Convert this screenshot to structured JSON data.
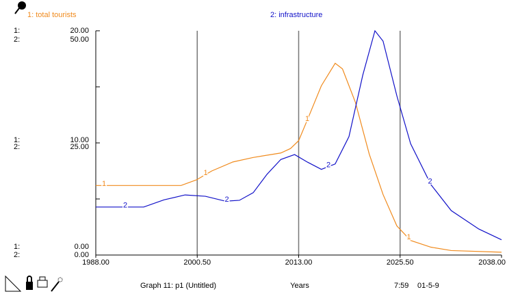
{
  "chart_data": {
    "type": "line",
    "x_label": "Years",
    "footer": {
      "graph": "Graph 11: p1 (Untitled)",
      "time": "7:59",
      "date": "01-5-9"
    },
    "y_prefix": "1:",
    "y2_prefix": "2:",
    "xlim": [
      1988,
      2038
    ],
    "xticks": [
      {
        "value": 1988,
        "label": "1988.00"
      },
      {
        "value": 2000.5,
        "label": "2000.50"
      },
      {
        "value": 2013,
        "label": "2013.00"
      },
      {
        "value": 2025.5,
        "label": "2025.50"
      },
      {
        "value": 2038,
        "label": "2038.00"
      }
    ],
    "ylim": [
      0,
      20
    ],
    "yticks": [
      {
        "value": 0,
        "label": "0.00"
      },
      {
        "value": 10,
        "label": "10.00"
      },
      {
        "value": 20,
        "label": "20.00"
      }
    ],
    "minor_yticks": [
      5,
      15
    ],
    "y2lim": [
      0,
      50
    ],
    "y2ticks": [
      {
        "value": 0,
        "label": "0.00"
      },
      {
        "value": 25,
        "label": "25.00"
      },
      {
        "value": 50,
        "label": "50.00"
      }
    ],
    "grid": true,
    "series": [
      {
        "name": "1: total tourists",
        "marker_label": "1",
        "color": "#f08a1c",
        "axis": "y",
        "x": [
          1988,
          1998.5,
          2000.4,
          2002.3,
          2004.9,
          2007.4,
          2010.8,
          2012,
          2013,
          2014.1,
          2015.8,
          2017.5,
          2018.4,
          2020,
          2021.7,
          2023.4,
          2025.1,
          2026.8,
          2029.3,
          2031.8,
          2038
        ],
        "values": [
          6.2,
          6.2,
          6.7,
          7.5,
          8.3,
          8.7,
          9.1,
          9.5,
          10.2,
          12.1,
          15.1,
          17.1,
          16.6,
          13.6,
          9.0,
          5.4,
          2.6,
          1.3,
          0.7,
          0.4,
          0.25
        ]
      },
      {
        "name": "2: infrastructure",
        "marker_label": "2",
        "color": "#1010c8",
        "axis": "y2",
        "x": [
          1988,
          1993.9,
          1996.4,
          1999,
          2001.5,
          2004,
          2005.7,
          2007.4,
          2009.1,
          2010.8,
          2012.5,
          2014.1,
          2015.8,
          2017.5,
          2019.2,
          2020.9,
          2022.4,
          2023.4,
          2025.1,
          2026.8,
          2029.3,
          2031.8,
          2035.2,
          2038
        ],
        "values": [
          10.7,
          10.7,
          12.3,
          13.4,
          13.1,
          12.0,
          12.2,
          13.9,
          18.0,
          21.3,
          22.4,
          20.7,
          19.1,
          20.3,
          26.4,
          40.1,
          50,
          47.7,
          35.5,
          24.8,
          15.7,
          9.9,
          5.8,
          3.4
        ]
      }
    ]
  }
}
